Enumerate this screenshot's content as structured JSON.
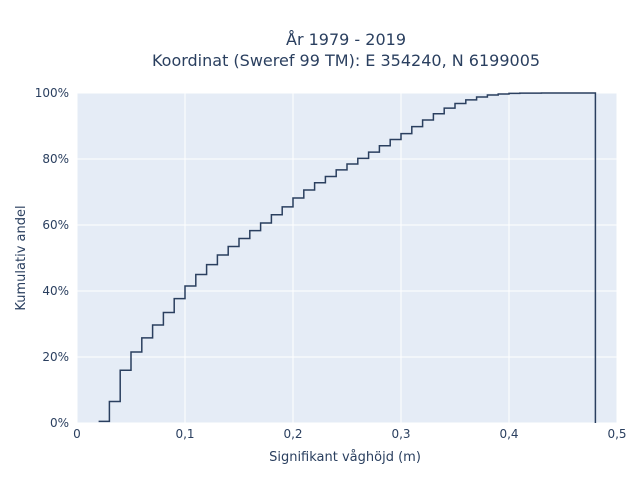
{
  "chart_data": {
    "type": "line",
    "subtype": "ecdf-step",
    "title_line1": "År 1979 - 2019",
    "title_line2": "Koordinat (Sweref 99 TM): E 354240, N 6199005",
    "xlabel": "Signifikant våghöjd (m)",
    "ylabel": "Kumulativ andel",
    "xlim": [
      0,
      0.5
    ],
    "ylim": [
      0,
      100
    ],
    "x_ticks": [
      0,
      0.1,
      0.2,
      0.3,
      0.4,
      0.5
    ],
    "x_tick_labels": [
      "0",
      "0,1",
      "0,2",
      "0,3",
      "0,4",
      "0,5"
    ],
    "y_ticks": [
      0,
      20,
      40,
      60,
      80,
      100
    ],
    "y_tick_labels": [
      "0%",
      "20%",
      "40%",
      "60%",
      "80%",
      "100%"
    ],
    "grid": true,
    "colors": {
      "line": "#2a3f5f",
      "plot_bg": "#e5ecf6",
      "grid": "#ffffff"
    },
    "series": [
      {
        "x": [
          0.02,
          0.03,
          0.04,
          0.05,
          0.06,
          0.07,
          0.08,
          0.09,
          0.1,
          0.11,
          0.12,
          0.13,
          0.14,
          0.15,
          0.16,
          0.17,
          0.18,
          0.19,
          0.2,
          0.21,
          0.22,
          0.23,
          0.24,
          0.25,
          0.26,
          0.27,
          0.28,
          0.29,
          0.3,
          0.31,
          0.32,
          0.33,
          0.34,
          0.35,
          0.36,
          0.37,
          0.38,
          0.39,
          0.4,
          0.41,
          0.42,
          0.43,
          0.44,
          0.48
        ],
        "y": [
          0.5,
          6.5,
          16,
          21.5,
          25.8,
          29.7,
          33.5,
          37.7,
          41.5,
          45,
          48,
          50.9,
          53.5,
          55.9,
          58.3,
          60.6,
          63.1,
          65.5,
          68.2,
          70.6,
          72.8,
          74.7,
          76.7,
          78.5,
          80.2,
          82.1,
          84,
          85.9,
          87.7,
          89.8,
          91.8,
          93.7,
          95.4,
          96.8,
          97.9,
          98.8,
          99.4,
          99.7,
          99.9,
          99.95,
          99.98,
          100,
          100,
          0
        ]
      }
    ]
  }
}
